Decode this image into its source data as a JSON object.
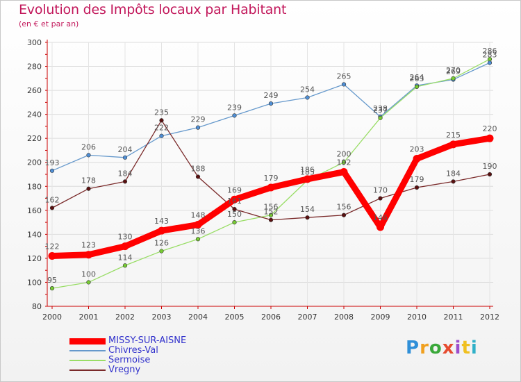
{
  "header": {
    "title": "Evolution des Impôts locaux par Habitant",
    "subtitle": "(en € et par an)"
  },
  "brand": {
    "logo_text": "Proxiti"
  },
  "colors": {
    "title": "#c2185b",
    "axis": "#cc0000",
    "legend_text": "#3333cc"
  },
  "chart_data": {
    "type": "line",
    "title": "Evolution des Impôts locaux par Habitant",
    "subtitle": "(en € et par an)",
    "xlabel": "",
    "ylabel": "",
    "x": [
      "2000",
      "2001",
      "2002",
      "2003",
      "2004",
      "2005",
      "2006",
      "2007",
      "2008",
      "2009",
      "2010",
      "2011",
      "2012"
    ],
    "ylim": [
      80,
      300
    ],
    "yticks": [
      80,
      100,
      120,
      140,
      160,
      180,
      200,
      220,
      240,
      260,
      280,
      300
    ],
    "grid": true,
    "legend_position": "bottom-left",
    "series": [
      {
        "name": "MISSY-SUR-AISNE",
        "color": "#ff0000",
        "marker": "#cc0000",
        "emphasis": true,
        "values": [
          122,
          123,
          130,
          143,
          148,
          169,
          179,
          186,
          192,
          146,
          203,
          215,
          220
        ]
      },
      {
        "name": "Chivres-Val",
        "color": "#6699cc",
        "marker": "#4f8fd6",
        "emphasis": false,
        "values": [
          193,
          206,
          204,
          222,
          229,
          239,
          249,
          254,
          265,
          238,
          264,
          269,
          283
        ]
      },
      {
        "name": "Sermoise",
        "color": "#99dd66",
        "marker": "#77cc33",
        "emphasis": false,
        "values": [
          95,
          100,
          114,
          126,
          136,
          150,
          156,
          185,
          200,
          237,
          263,
          270,
          286
        ]
      },
      {
        "name": "Vregny",
        "color": "#7a2a2a",
        "marker": "#5a1010",
        "emphasis": false,
        "values": [
          162,
          178,
          184,
          235,
          188,
          161,
          152,
          154,
          156,
          170,
          179,
          184,
          190
        ]
      }
    ]
  }
}
